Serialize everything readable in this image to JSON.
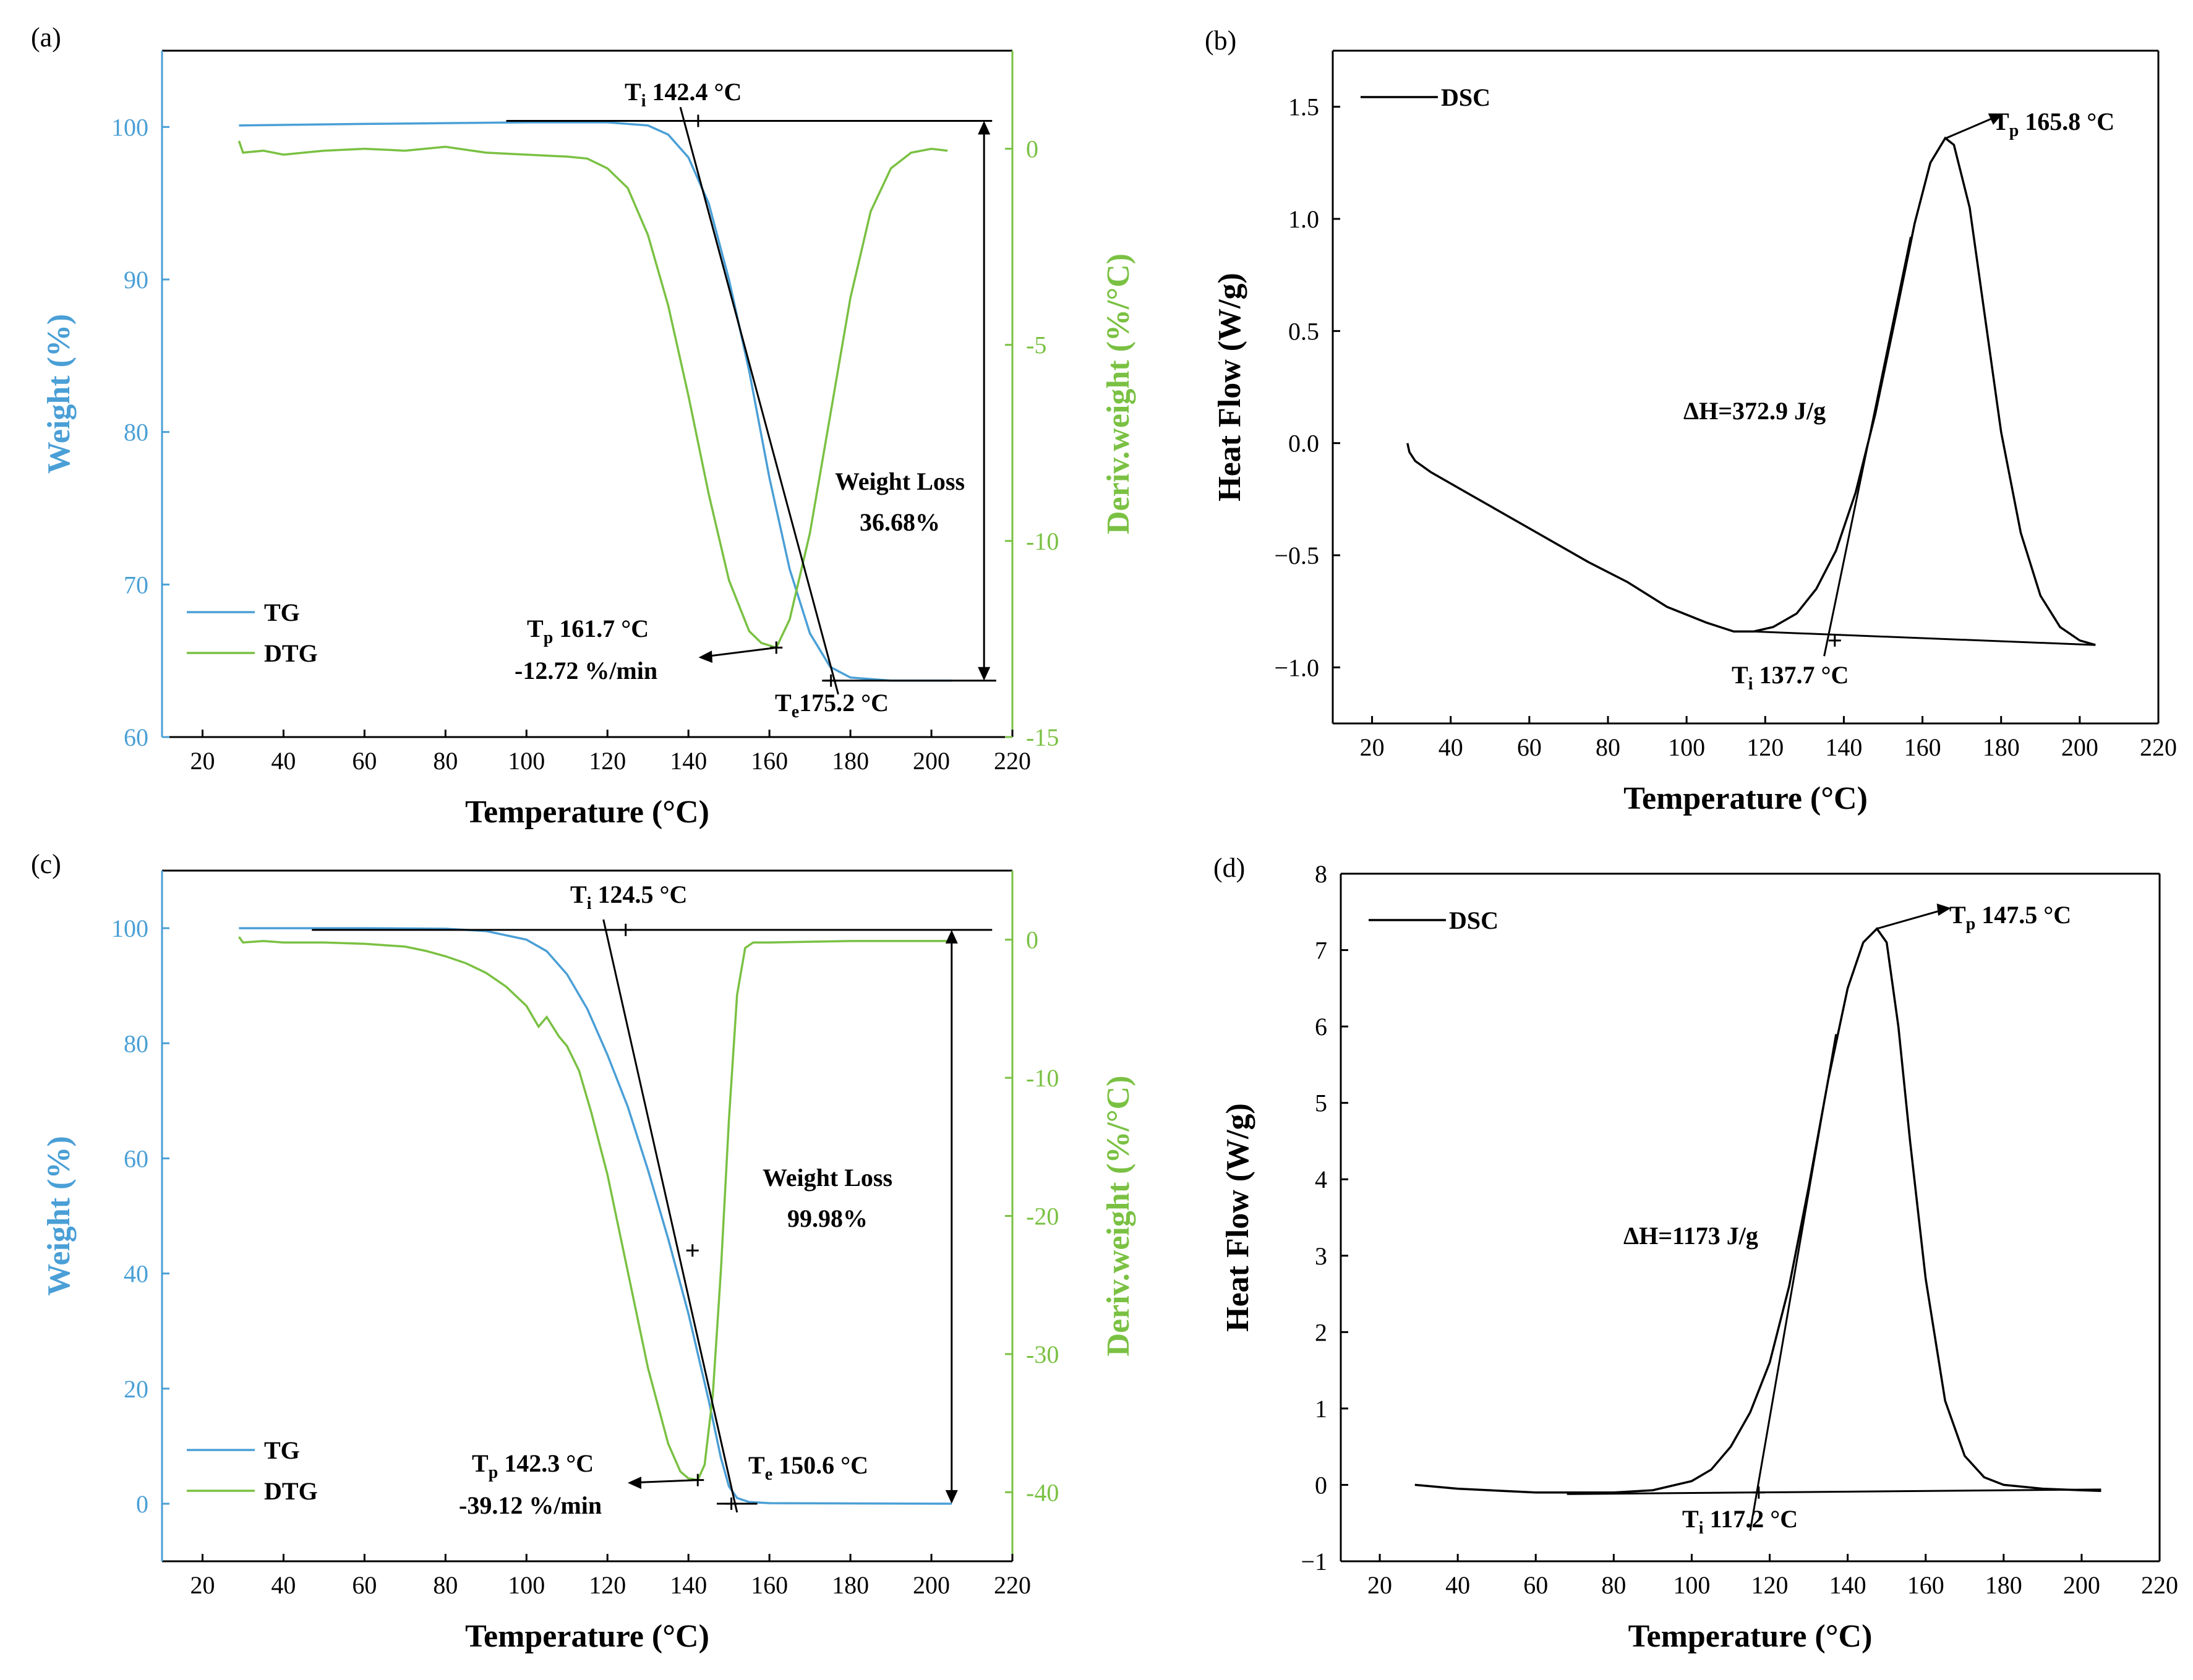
{
  "colors": {
    "tg": "#4a9fd6",
    "dtg": "#7ac143",
    "dsc": "#000000",
    "axis": "#000000",
    "tg_axis": "#4a9fd6",
    "dtg_axis": "#7ac143"
  },
  "panels": {
    "a": {
      "label": "(a)"
    },
    "b": {
      "label": "(b)"
    },
    "c": {
      "label": "(c)"
    },
    "d": {
      "label": "(d)"
    }
  },
  "chart_data": [
    {
      "id": "a",
      "type": "line",
      "title": "",
      "xlabel": "Temperature (°C)",
      "ylabel": "Weight (%)",
      "y2label": "Deriv.weight (%/°C)",
      "xlim": [
        10,
        220
      ],
      "ylim": [
        60,
        105
      ],
      "y2lim": [
        -15,
        2.5
      ],
      "xticks": [
        20,
        40,
        60,
        80,
        100,
        120,
        140,
        160,
        180,
        200,
        220
      ],
      "yticks": [
        60,
        70,
        80,
        90,
        100
      ],
      "y2ticks": [
        -15,
        -10,
        -5,
        0
      ],
      "legend": [
        "TG",
        "DTG"
      ],
      "legend_position": "bottom-left",
      "series": [
        {
          "name": "TG",
          "axis": "left",
          "x": [
            29,
            60,
            100,
            120,
            130,
            135,
            140,
            145,
            150,
            155,
            160,
            165,
            170,
            175,
            180,
            190,
            205
          ],
          "y": [
            100.1,
            100.2,
            100.3,
            100.3,
            100.1,
            99.5,
            98.0,
            95.0,
            90.0,
            84.0,
            77.0,
            71.0,
            66.8,
            64.6,
            63.9,
            63.7,
            63.7
          ]
        },
        {
          "name": "DTG",
          "axis": "left2",
          "x": [
            29,
            30,
            35,
            40,
            50,
            60,
            70,
            80,
            90,
            100,
            110,
            115,
            120,
            125,
            130,
            135,
            140,
            145,
            150,
            155,
            158,
            161.7,
            165,
            170,
            175,
            180,
            185,
            190,
            195,
            200,
            204
          ],
          "y": [
            0.2,
            -0.1,
            -0.05,
            -0.15,
            -0.05,
            0.0,
            -0.05,
            0.05,
            -0.1,
            -0.15,
            -0.2,
            -0.25,
            -0.5,
            -1.0,
            -2.2,
            -4.0,
            -6.3,
            -8.8,
            -11.0,
            -12.3,
            -12.6,
            -12.72,
            -12.0,
            -9.8,
            -6.8,
            -3.8,
            -1.6,
            -0.5,
            -0.1,
            0.0,
            -0.05
          ]
        }
      ],
      "annotations": {
        "ti": {
          "main": "T",
          "sub": "i",
          "rest": " 142.4 °C"
        },
        "tp": {
          "main": "T",
          "sub": "p",
          "rest": " 161.7 °C",
          "line2": "-12.72 %/min"
        },
        "te": {
          "main": "T",
          "sub": "e",
          "rest": "175.2 °C"
        },
        "weight_loss": {
          "line1": "Weight Loss",
          "line2": "36.68%"
        }
      }
    },
    {
      "id": "b",
      "type": "line",
      "title": "",
      "xlabel": "Temperature (°C)",
      "ylabel": "Heat Flow (W/g)",
      "xlim": [
        10,
        220
      ],
      "ylim": [
        -1.25,
        1.75
      ],
      "xticks": [
        20,
        40,
        60,
        80,
        100,
        120,
        140,
        160,
        180,
        200,
        220
      ],
      "yticks": [
        -1.0,
        -0.5,
        0.0,
        0.5,
        1.0,
        1.5
      ],
      "ytick_labels": [
        "−1.0",
        "−0.5",
        "0.0",
        "0.5",
        "1.0",
        "1.5"
      ],
      "legend": [
        "DSC"
      ],
      "legend_position": "top-left",
      "series": [
        {
          "name": "DSC",
          "x": [
            29,
            29.5,
            31,
            35,
            45,
            60,
            75,
            85,
            95,
            105,
            112,
            117,
            122,
            128,
            133,
            138,
            143,
            148,
            153,
            158,
            162,
            165.8,
            168,
            172,
            176,
            180,
            185,
            190,
            195,
            200,
            204
          ],
          "y": [
            0.0,
            -0.04,
            -0.08,
            -0.13,
            -0.23,
            -0.38,
            -0.53,
            -0.62,
            -0.73,
            -0.8,
            -0.84,
            -0.84,
            -0.82,
            -0.76,
            -0.65,
            -0.48,
            -0.22,
            0.13,
            0.55,
            0.98,
            1.25,
            1.36,
            1.33,
            1.05,
            0.55,
            0.05,
            -0.4,
            -0.68,
            -0.82,
            -0.88,
            -0.9
          ]
        }
      ],
      "annotations": {
        "tp": {
          "main": "T",
          "sub": "p",
          "rest": " 165.8 °C"
        },
        "ti": {
          "main": "T",
          "sub": "i",
          "rest": " 137.7 °C"
        },
        "dh": {
          "text": "ΔH=372.9 J/g"
        }
      }
    },
    {
      "id": "c",
      "type": "line",
      "title": "",
      "xlabel": "Temperature (°C)",
      "ylabel": "Weight (%)",
      "y2label": "Deriv.weight (%/°C)",
      "xlim": [
        10,
        220
      ],
      "ylim": [
        -10,
        110
      ],
      "y2lim": [
        -45,
        5
      ],
      "xticks": [
        20,
        40,
        60,
        80,
        100,
        120,
        140,
        160,
        180,
        200,
        220
      ],
      "yticks": [
        0,
        20,
        40,
        60,
        80,
        100
      ],
      "y2ticks": [
        -40,
        -30,
        -20,
        -10,
        0
      ],
      "legend": [
        "TG",
        "DTG"
      ],
      "legend_position": "bottom-left",
      "series": [
        {
          "name": "TG",
          "axis": "left",
          "x": [
            29,
            60,
            80,
            90,
            100,
            105,
            110,
            115,
            120,
            125,
            130,
            135,
            140,
            145,
            148,
            150,
            152,
            155,
            160,
            205
          ],
          "y": [
            100,
            100,
            99.9,
            99.5,
            98,
            96,
            92,
            86,
            78,
            69,
            58,
            46,
            33,
            18,
            8,
            3,
            1,
            0.3,
            0.1,
            0.0
          ]
        },
        {
          "name": "DTG",
          "axis": "left2",
          "x": [
            29,
            30,
            35,
            40,
            50,
            60,
            70,
            75,
            80,
            85,
            90,
            95,
            100,
            103,
            105,
            108,
            110,
            113,
            116,
            120,
            125,
            130,
            135,
            138,
            140,
            142.3,
            144,
            146,
            148,
            150,
            152,
            154,
            156,
            160,
            180,
            205
          ],
          "y": [
            0.2,
            -0.2,
            -0.1,
            -0.2,
            -0.2,
            -0.3,
            -0.5,
            -0.8,
            -1.2,
            -1.7,
            -2.4,
            -3.4,
            -4.8,
            -6.3,
            -5.6,
            -7.0,
            -7.7,
            -9.5,
            -12.5,
            -17,
            -24,
            -31,
            -36.5,
            -38.5,
            -39.0,
            -39.12,
            -38.0,
            -33,
            -24,
            -13,
            -4,
            -0.6,
            -0.2,
            -0.2,
            -0.1,
            -0.1
          ]
        }
      ],
      "annotations": {
        "ti": {
          "main": "T",
          "sub": "i",
          "rest": " 124.5 °C"
        },
        "tp": {
          "main": "T",
          "sub": "p",
          "rest": " 142.3 °C",
          "line2": "-39.12 %/min"
        },
        "te": {
          "main": "T",
          "sub": "e",
          "rest": " 150.6 °C"
        },
        "weight_loss": {
          "line1": "Weight Loss",
          "line2": "99.98%"
        }
      }
    },
    {
      "id": "d",
      "type": "line",
      "title": "",
      "xlabel": "Temperature (°C)",
      "ylabel": "Heat Flow (W/g)",
      "xlim": [
        10,
        220
      ],
      "ylim": [
        -1,
        8
      ],
      "xticks": [
        20,
        40,
        60,
        80,
        100,
        120,
        140,
        160,
        180,
        200,
        220
      ],
      "yticks": [
        -1,
        0,
        1,
        2,
        3,
        4,
        5,
        6,
        7,
        8
      ],
      "ytick_labels": [
        "−1",
        "0",
        "1",
        "2",
        "3",
        "4",
        "5",
        "6",
        "7",
        "8"
      ],
      "legend": [
        "DSC"
      ],
      "legend_position": "top-left",
      "series": [
        {
          "name": "DSC",
          "x": [
            29,
            40,
            60,
            80,
            90,
            100,
            105,
            110,
            115,
            120,
            125,
            130,
            135,
            140,
            144,
            147.5,
            150,
            153,
            156,
            160,
            165,
            170,
            175,
            180,
            190,
            200,
            205
          ],
          "y": [
            0.0,
            -0.05,
            -0.1,
            -0.1,
            -0.07,
            0.05,
            0.2,
            0.5,
            0.95,
            1.6,
            2.6,
            3.9,
            5.3,
            6.5,
            7.1,
            7.28,
            7.1,
            6.0,
            4.5,
            2.7,
            1.1,
            0.38,
            0.1,
            0.0,
            -0.05,
            -0.07,
            -0.08
          ]
        }
      ],
      "annotations": {
        "tp": {
          "main": "T",
          "sub": "p",
          "rest": " 147.5 °C"
        },
        "ti": {
          "main": "T",
          "sub": "i",
          "rest": " 117.2 °C"
        },
        "dh": {
          "text": "ΔH=1173 J/g"
        }
      }
    }
  ]
}
